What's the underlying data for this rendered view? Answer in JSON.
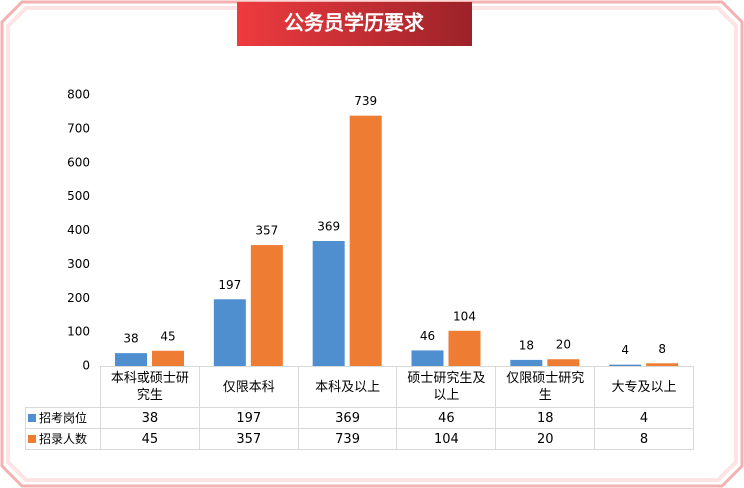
{
  "chart_data": {
    "type": "bar",
    "title": "公务员学历要求",
    "categories": [
      "本科或硕士研究生",
      "仅限本科",
      "本科及以上",
      "硕士研究生及以上",
      "仅限硕士研究生",
      "大专及以上"
    ],
    "series": [
      {
        "name": "招考岗位",
        "color": "#4f8fd0",
        "values": [
          38,
          197,
          369,
          46,
          18,
          4
        ]
      },
      {
        "name": "招录人数",
        "color": "#ee7d33",
        "values": [
          45,
          357,
          739,
          104,
          20,
          8
        ]
      }
    ],
    "ylim": [
      0,
      800
    ],
    "yticks": [
      0,
      100,
      200,
      300,
      400,
      500,
      600,
      700,
      800
    ],
    "grid": false,
    "data_table": true
  }
}
